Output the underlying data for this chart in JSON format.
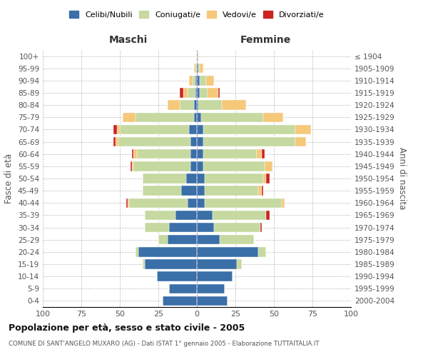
{
  "age_groups": [
    "0-4",
    "5-9",
    "10-14",
    "15-19",
    "20-24",
    "25-29",
    "30-34",
    "35-39",
    "40-44",
    "45-49",
    "50-54",
    "55-59",
    "60-64",
    "65-69",
    "70-74",
    "75-79",
    "80-84",
    "85-89",
    "90-94",
    "95-99",
    "100+"
  ],
  "birth_years": [
    "2000-2004",
    "1995-1999",
    "1990-1994",
    "1985-1989",
    "1980-1984",
    "1975-1979",
    "1970-1974",
    "1965-1969",
    "1960-1964",
    "1955-1959",
    "1950-1954",
    "1945-1949",
    "1940-1944",
    "1935-1939",
    "1930-1934",
    "1925-1929",
    "1920-1924",
    "1915-1919",
    "1910-1914",
    "1905-1909",
    "≤ 1904"
  ],
  "colors": {
    "celibi": "#3a6fa8",
    "coniugati": "#c5d9a0",
    "vedovi": "#f5c87a",
    "divorziati": "#cc2222"
  },
  "maschi": {
    "celibi": [
      22,
      18,
      26,
      34,
      38,
      19,
      18,
      14,
      6,
      10,
      7,
      4,
      4,
      4,
      5,
      2,
      2,
      1,
      1,
      0,
      0
    ],
    "coniugati": [
      0,
      0,
      0,
      1,
      2,
      6,
      16,
      20,
      38,
      25,
      28,
      37,
      35,
      47,
      45,
      38,
      9,
      5,
      2,
      1,
      0
    ],
    "vedovi": [
      0,
      0,
      0,
      0,
      0,
      0,
      0,
      0,
      1,
      0,
      0,
      1,
      2,
      2,
      2,
      8,
      8,
      3,
      2,
      1,
      0
    ],
    "divorziati": [
      0,
      0,
      0,
      0,
      0,
      0,
      0,
      0,
      1,
      0,
      0,
      1,
      1,
      1,
      2,
      0,
      0,
      2,
      0,
      0,
      0
    ]
  },
  "femmine": {
    "celibi": [
      20,
      18,
      23,
      26,
      40,
      15,
      11,
      10,
      5,
      5,
      5,
      4,
      4,
      4,
      4,
      3,
      1,
      2,
      2,
      1,
      0
    ],
    "coniugati": [
      0,
      0,
      0,
      3,
      5,
      22,
      30,
      35,
      50,
      35,
      38,
      40,
      35,
      60,
      60,
      40,
      15,
      5,
      4,
      1,
      0
    ],
    "vedovi": [
      0,
      0,
      0,
      0,
      0,
      0,
      0,
      0,
      2,
      2,
      2,
      5,
      3,
      7,
      10,
      13,
      16,
      7,
      5,
      2,
      1
    ],
    "divorziati": [
      0,
      0,
      0,
      0,
      0,
      0,
      1,
      2,
      0,
      1,
      2,
      0,
      2,
      0,
      0,
      0,
      0,
      1,
      0,
      0,
      0
    ]
  },
  "title": "Popolazione per età, sesso e stato civile - 2005",
  "subtitle": "COMUNE DI SANT'ANGELO MUXARO (AG) - Dati ISTAT 1° gennaio 2005 - Elaborazione TUTTAITALIA.IT",
  "xlabel_left": "Maschi",
  "xlabel_right": "Femmine",
  "ylabel_left": "Fasce di età",
  "ylabel_right": "Anni di nascita",
  "bg_color": "#ffffff",
  "grid_color": "#bbbbbb",
  "xmin": -100,
  "xmax": 100,
  "xticks": [
    -100,
    -75,
    -50,
    -25,
    0,
    25,
    50,
    75,
    100
  ],
  "xtick_labels": [
    "100",
    "75",
    "50",
    "25",
    "0",
    "25",
    "50",
    "75",
    "100"
  ]
}
